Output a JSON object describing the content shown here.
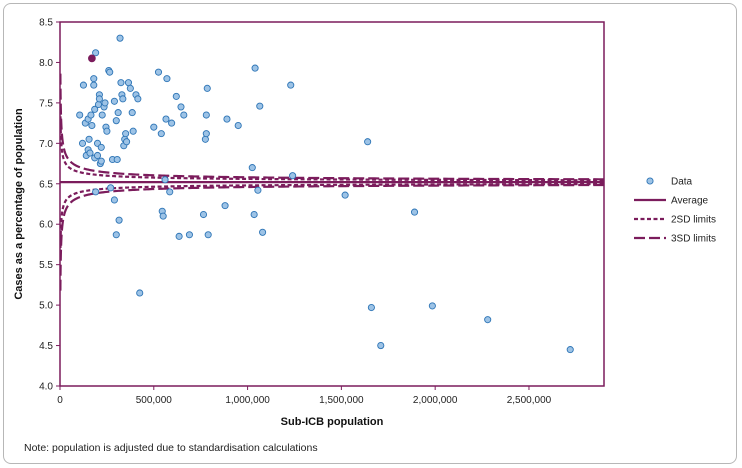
{
  "chart_data": {
    "type": "scatter",
    "xlabel": "Sub-ICB population",
    "ylabel": "Cases as a percentage of population",
    "xlim": [
      0,
      2900000
    ],
    "ylim": [
      4.0,
      8.5
    ],
    "x_ticks": [
      "0",
      "500,000",
      "1,000,000",
      "1,500,000",
      "2,000,000",
      "2,500,000"
    ],
    "x_tick_values": [
      0,
      500000,
      1000000,
      1500000,
      2000000,
      2500000
    ],
    "y_ticks": [
      "4.0",
      "4.5",
      "5.0",
      "5.5",
      "6.0",
      "6.5",
      "7.0",
      "7.5",
      "8.0",
      "8.5"
    ],
    "y_tick_values": [
      4.0,
      4.5,
      5.0,
      5.5,
      6.0,
      6.5,
      7.0,
      7.5,
      8.0,
      8.5
    ],
    "grid": false,
    "legend_position": "right",
    "average": 6.52,
    "sd_scale": 20,
    "colors": {
      "data_fill": "#9dc3e6",
      "data_stroke": "#2e75b6",
      "limits": "#7b1c5c",
      "highlight": "#7b1c5c",
      "plot_border": "#7b1c5c"
    },
    "series": [
      {
        "name": "Data",
        "points": [
          [
            105000,
            7.35
          ],
          [
            120000,
            7.0
          ],
          [
            125000,
            7.72
          ],
          [
            135000,
            7.25
          ],
          [
            140000,
            6.85
          ],
          [
            150000,
            6.92
          ],
          [
            150000,
            7.3
          ],
          [
            155000,
            7.05
          ],
          [
            160000,
            6.88
          ],
          [
            165000,
            7.35
          ],
          [
            170000,
            7.22
          ],
          [
            180000,
            7.72
          ],
          [
            180000,
            7.8
          ],
          [
            185000,
            6.82
          ],
          [
            185000,
            7.42
          ],
          [
            190000,
            6.4
          ],
          [
            190000,
            8.12
          ],
          [
            200000,
            7.0
          ],
          [
            200000,
            6.85
          ],
          [
            205000,
            7.48
          ],
          [
            210000,
            7.6
          ],
          [
            210000,
            7.55
          ],
          [
            215000,
            6.75
          ],
          [
            220000,
            6.78
          ],
          [
            220000,
            6.95
          ],
          [
            225000,
            7.35
          ],
          [
            235000,
            7.45
          ],
          [
            240000,
            7.5
          ],
          [
            245000,
            7.2
          ],
          [
            250000,
            7.15
          ],
          [
            260000,
            7.9
          ],
          [
            265000,
            7.88
          ],
          [
            270000,
            6.45
          ],
          [
            280000,
            6.8
          ],
          [
            290000,
            7.52
          ],
          [
            290000,
            6.3
          ],
          [
            300000,
            7.28
          ],
          [
            300000,
            5.87
          ],
          [
            305000,
            6.8
          ],
          [
            310000,
            7.38
          ],
          [
            315000,
            6.05
          ],
          [
            320000,
            8.3
          ],
          [
            325000,
            7.75
          ],
          [
            330000,
            7.6
          ],
          [
            335000,
            7.55
          ],
          [
            340000,
            6.97
          ],
          [
            345000,
            7.05
          ],
          [
            350000,
            7.12
          ],
          [
            355000,
            7.02
          ],
          [
            365000,
            7.75
          ],
          [
            375000,
            7.68
          ],
          [
            385000,
            7.38
          ],
          [
            390000,
            7.15
          ],
          [
            405000,
            7.6
          ],
          [
            415000,
            7.55
          ],
          [
            425000,
            5.15
          ],
          [
            500000,
            7.2
          ],
          [
            525000,
            7.88
          ],
          [
            540000,
            7.12
          ],
          [
            545000,
            6.16
          ],
          [
            550000,
            6.1
          ],
          [
            560000,
            6.55
          ],
          [
            565000,
            7.3
          ],
          [
            570000,
            7.8
          ],
          [
            585000,
            6.4
          ],
          [
            595000,
            7.25
          ],
          [
            620000,
            7.58
          ],
          [
            635000,
            5.85
          ],
          [
            645000,
            7.45
          ],
          [
            660000,
            7.35
          ],
          [
            690000,
            5.87
          ],
          [
            765000,
            6.12
          ],
          [
            775000,
            7.05
          ],
          [
            780000,
            7.35
          ],
          [
            780000,
            7.12
          ],
          [
            785000,
            7.68
          ],
          [
            790000,
            5.87
          ],
          [
            880000,
            6.23
          ],
          [
            890000,
            7.3
          ],
          [
            950000,
            7.22
          ],
          [
            1025000,
            6.7
          ],
          [
            1035000,
            6.12
          ],
          [
            1040000,
            7.93
          ],
          [
            1055000,
            6.42
          ],
          [
            1065000,
            7.46
          ],
          [
            1080000,
            5.9
          ],
          [
            1230000,
            7.72
          ],
          [
            1240000,
            6.6
          ],
          [
            1520000,
            6.36
          ],
          [
            1640000,
            7.02
          ],
          [
            1660000,
            4.97
          ],
          [
            1710000,
            4.5
          ],
          [
            1890000,
            6.15
          ],
          [
            1985000,
            4.99
          ],
          [
            2280000,
            4.82
          ],
          [
            2720000,
            4.45
          ]
        ]
      }
    ],
    "highlight_point": [
      170000,
      8.05
    ],
    "legend": [
      {
        "label": "Data",
        "style": "marker"
      },
      {
        "label": "Average",
        "style": "solid"
      },
      {
        "label": "2SD limits",
        "style": "short-dash"
      },
      {
        "label": "3SD limits",
        "style": "long-dash"
      }
    ],
    "note": "Note: population is adjusted due to standardisation calculations"
  }
}
